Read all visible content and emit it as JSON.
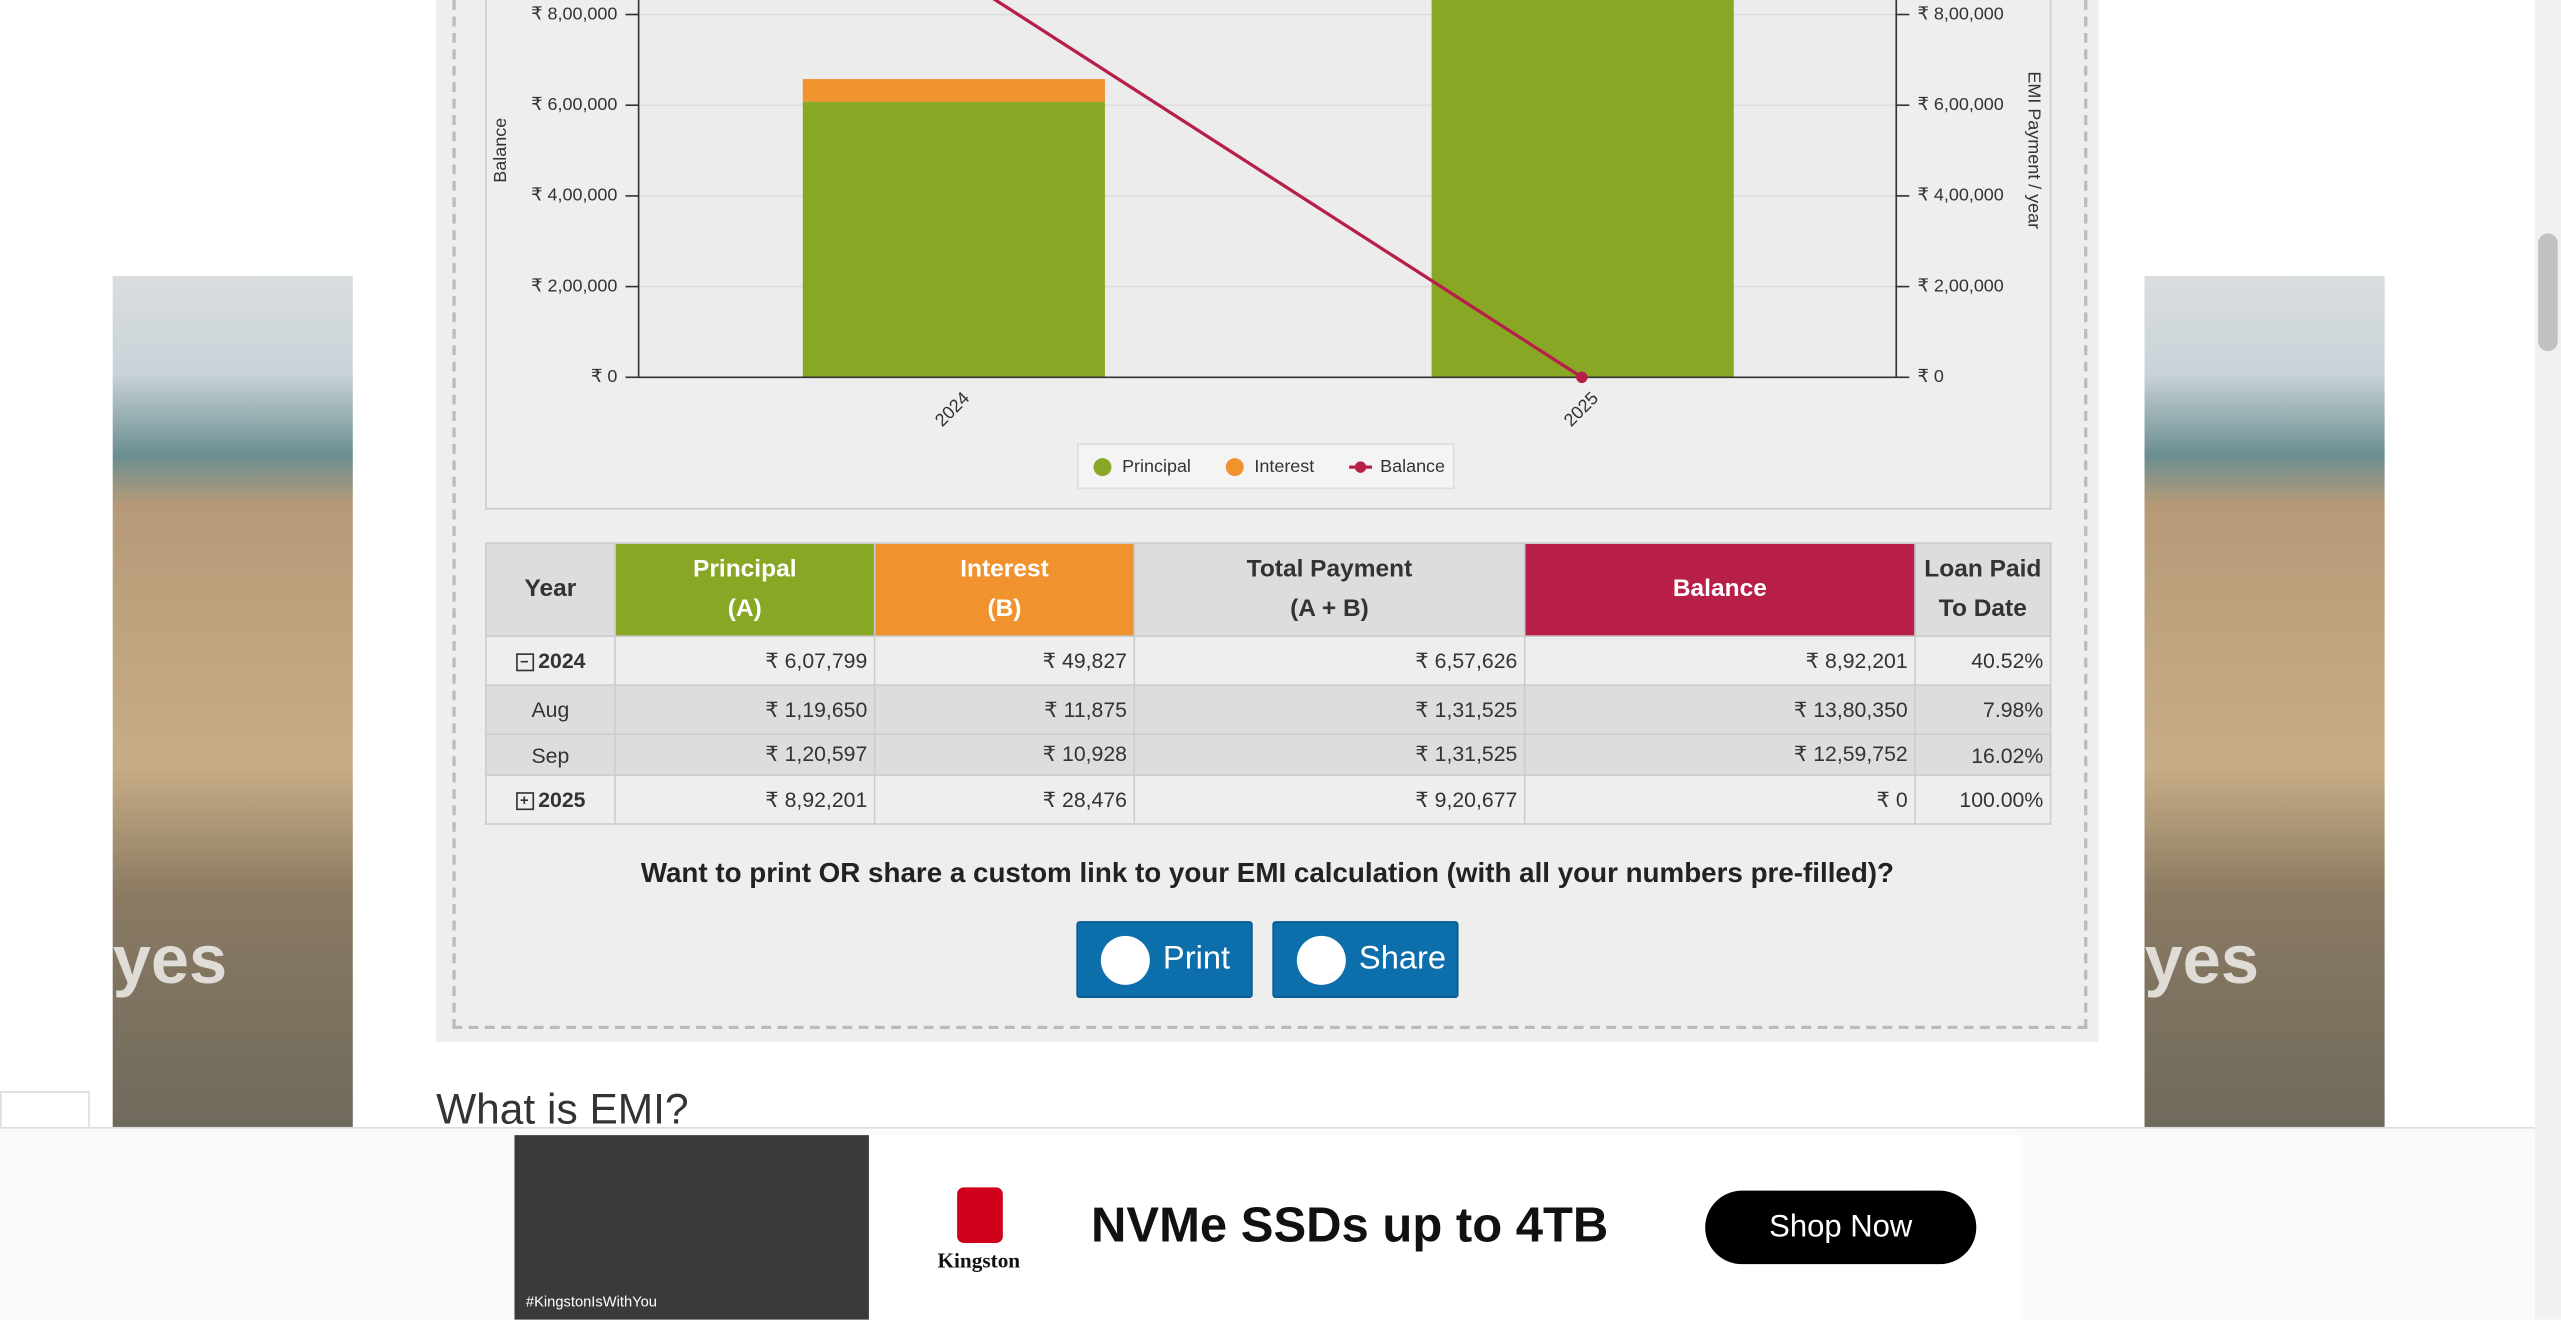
{
  "chart_data": {
    "type": "bar",
    "y_label": "Balance",
    "y2_label": "EMI Payment / year",
    "categories": [
      "2024",
      "2025"
    ],
    "series": [
      {
        "name": "Principal",
        "color": "#88a825",
        "axis": "y2",
        "values": [
          607799,
          892201
        ]
      },
      {
        "name": "Interest",
        "color": "#f0922e",
        "axis": "y2",
        "values": [
          49827,
          28476
        ]
      },
      {
        "name": "Balance",
        "color": "#b81f48",
        "type": "line",
        "values": [
          892201,
          0
        ]
      }
    ],
    "stacked": true,
    "legend": "bottom",
    "ylim": [
      0,
      832000
    ],
    "yticks": [
      {
        "value": 0,
        "label": "₹ 0"
      },
      {
        "value": 200000,
        "label": "₹ 2,00,000"
      },
      {
        "value": 400000,
        "label": "₹ 4,00,000"
      },
      {
        "value": 600000,
        "label": "₹ 6,00,000"
      },
      {
        "value": 800000,
        "label": "₹ 8,00,000"
      }
    ],
    "y2lim": [
      0,
      832000
    ],
    "y2ticks": [
      {
        "value": 0,
        "label": "₹ 0"
      },
      {
        "value": 200000,
        "label": "₹ 2,00,000"
      },
      {
        "value": 400000,
        "label": "₹ 4,00,000"
      },
      {
        "value": 600000,
        "label": "₹ 6,00,000"
      },
      {
        "value": 800000,
        "label": "₹ 8,00,000"
      }
    ]
  },
  "table": {
    "header": [
      "Year",
      "Principal\n(A)",
      "Interest\n(B)",
      "Total Payment\n(A + B)",
      "Balance",
      "Loan Paid\nTo Date"
    ],
    "rows": [
      [
        "2024",
        "₹ 6,07,799",
        "₹ 49,827",
        "₹ 6,57,626",
        "₹ 8,92,201",
        "40.52%"
      ],
      [
        "Aug",
        "₹ 1,19,650",
        "₹ 11,875",
        "₹ 1,31,525",
        "₹ 13,80,350",
        "7.98%"
      ],
      [
        "Sep",
        "₹ 1,20,597",
        "₹ 10,928",
        "₹ 1,31,525",
        "₹ 12,59,752",
        "16.02%"
      ],
      [
        "2025",
        "₹ 8,92,201",
        "₹ 28,476",
        "₹ 9,20,677",
        "₹ 0",
        "100.00%"
      ]
    ]
  },
  "share": {
    "question": "Want to print OR share a custom link to your EMI calculation (with all your numbers pre-filled)?",
    "print": "Print",
    "share": "Share"
  },
  "section_title": "What is EMI?",
  "ads": {
    "side": "yes",
    "headline": "NVMe SSDs up to 4TB",
    "button": "Shop Now",
    "brand": "Kingston",
    "hashtag": "#KingstonIsWithYou"
  }
}
